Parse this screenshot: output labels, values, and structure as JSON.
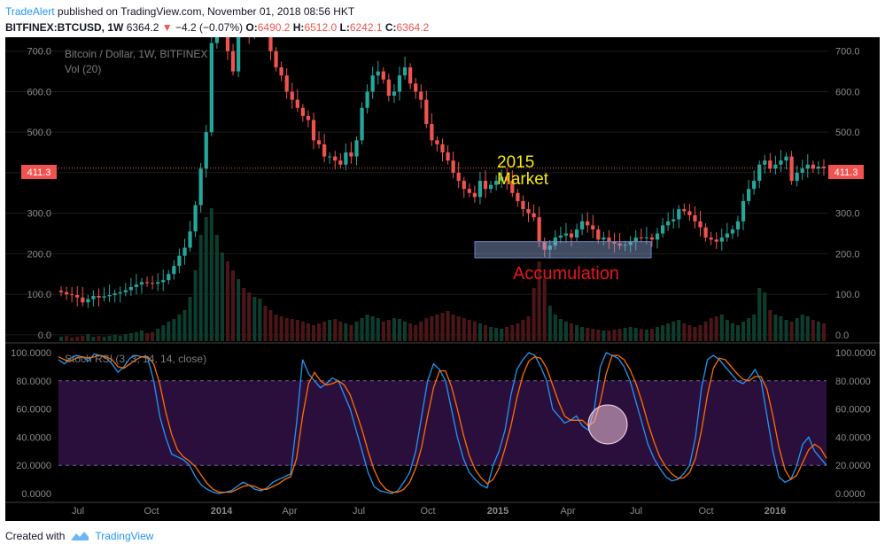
{
  "header": {
    "author": "TradeAlert",
    "published": "published on TradingView.com, November 01, 2018 08:56 HKT",
    "symbol": "BITFINEX:BTCUSD, 1W",
    "last": "6364.2",
    "change": "−4.2 (−0.07%)",
    "o_label": "O:",
    "o": "6490.2",
    "h_label": "H:",
    "h": "6512.0",
    "l_label": "L:",
    "l": "6242.1",
    "c_label": "C:",
    "c": "6364.2"
  },
  "footer": {
    "created_with": "Created with",
    "brand": "TradingView"
  },
  "colors": {
    "up": "#26a69a",
    "down": "#ef5350",
    "background": "#000000",
    "rsi_k": "#2196f3",
    "rsi_d": "#ff6d00",
    "rsi_band": "#2a0f3d"
  },
  "chart_data": [
    {
      "type": "candlestick",
      "title": "Bitcoin / Dollar, 1W, BITFINEX",
      "volume_label": "Vol (20)",
      "last_price_label": "411.3",
      "last_price": 411.3,
      "ylim": [
        -20,
        730
      ],
      "y_ticks": [
        "700.0",
        "600.0",
        "500.0",
        "400.0",
        "300.0",
        "200.0",
        "100.0",
        "0.0"
      ],
      "y_tick_values": [
        700,
        600,
        500,
        400,
        300,
        200,
        100,
        0
      ],
      "annotations": {
        "market_line1": "2015",
        "market_line2": "Market",
        "accumulation": "Accumulation"
      },
      "accumulation_zone": {
        "from": "2015-01",
        "to": "2015-07",
        "low": 190,
        "high": 230
      },
      "closes": [
        105,
        100,
        98,
        92,
        80,
        88,
        96,
        92,
        95,
        98,
        102,
        105,
        110,
        118,
        124,
        130,
        128,
        126,
        130,
        135,
        150,
        170,
        195,
        215,
        255,
        320,
        410,
        500,
        720,
        760,
        800,
        700,
        650,
        820,
        760,
        740,
        820,
        860,
        780,
        700,
        660,
        640,
        600,
        580,
        560,
        540,
        530,
        480,
        470,
        440,
        440,
        430,
        420,
        450,
        440,
        480,
        560,
        600,
        640,
        650,
        630,
        590,
        600,
        640,
        660,
        620,
        600,
        580,
        520,
        480,
        470,
        450,
        430,
        400,
        380,
        360,
        350,
        340,
        380,
        360,
        370,
        380,
        390,
        380,
        350,
        330,
        310,
        300,
        290,
        230,
        210,
        220,
        240,
        245,
        250,
        240,
        260,
        280,
        270,
        260,
        235,
        240,
        230,
        225,
        220,
        222,
        230,
        240,
        238,
        240,
        235,
        250,
        270,
        280,
        285,
        310,
        305,
        295,
        280,
        265,
        240,
        235,
        230,
        240,
        250,
        260,
        280,
        330,
        360,
        380,
        420,
        430,
        410,
        420,
        430,
        440,
        380,
        400,
        410,
        420,
        410,
        415,
        411
      ],
      "volume_heights": [
        5,
        6,
        4,
        5,
        6,
        8,
        5,
        6,
        5,
        6,
        7,
        6,
        8,
        9,
        10,
        12,
        9,
        10,
        14,
        18,
        22,
        25,
        30,
        35,
        50,
        80,
        120,
        140,
        150,
        120,
        100,
        90,
        80,
        70,
        60,
        55,
        50,
        48,
        40,
        35,
        30,
        28,
        26,
        25,
        24,
        22,
        20,
        18,
        20,
        22,
        24,
        25,
        22,
        20,
        18,
        22,
        26,
        30,
        28,
        26,
        22,
        24,
        26,
        25,
        22,
        20,
        18,
        22,
        26,
        28,
        30,
        32,
        34,
        30,
        28,
        26,
        24,
        22,
        20,
        18,
        16,
        15,
        14,
        16,
        18,
        20,
        24,
        28,
        60,
        90,
        70,
        40,
        30,
        25,
        22,
        20,
        18,
        16,
        15,
        14,
        13,
        12,
        12,
        13,
        14,
        15,
        16,
        15,
        14,
        13,
        14,
        16,
        18,
        20,
        22,
        24,
        20,
        18,
        16,
        18,
        22,
        26,
        28,
        30,
        24,
        20,
        18,
        22,
        26,
        30,
        60,
        55,
        35,
        30,
        28,
        24,
        22,
        26,
        30,
        28,
        24,
        22,
        20
      ],
      "x_labels": [
        "Jul",
        "Oct",
        "2014",
        "Apr",
        "Jul",
        "Oct",
        "2015",
        "Apr",
        "Jul",
        "Oct",
        "2016"
      ]
    },
    {
      "type": "line",
      "title": "Stoch RSI (3, 3, 14, 14, close)",
      "ylim": [
        -5,
        105
      ],
      "y_ticks": [
        "100.0000",
        "80.0000",
        "60.0000",
        "40.0000",
        "20.0000",
        "0.0000"
      ],
      "y_tick_values": [
        100,
        80,
        60,
        40,
        20,
        0
      ],
      "band": [
        20,
        80
      ],
      "series": [
        {
          "values": [
            95,
            92,
            96,
            98,
            97,
            94,
            99,
            98,
            96,
            92,
            86,
            90,
            96,
            98,
            97,
            96,
            80,
            55,
            40,
            28,
            26,
            24,
            20,
            12,
            6,
            3,
            1,
            0,
            1,
            2,
            5,
            8,
            6,
            3,
            2,
            4,
            8,
            10,
            12,
            14,
            50,
            95,
            85,
            80,
            75,
            78,
            82,
            80,
            70,
            60,
            45,
            30,
            15,
            5,
            2,
            1,
            0,
            2,
            8,
            15,
            30,
            55,
            80,
            92,
            88,
            80,
            60,
            40,
            25,
            15,
            10,
            6,
            4,
            20,
            30,
            45,
            70,
            88,
            95,
            100,
            98,
            90,
            80,
            60,
            55,
            50,
            52,
            55,
            48,
            45,
            60,
            90,
            100,
            98,
            96,
            90,
            80,
            65,
            50,
            35,
            25,
            18,
            12,
            9,
            10,
            14,
            20,
            40,
            75,
            95,
            98,
            95,
            90,
            85,
            80,
            78,
            82,
            88,
            80,
            55,
            30,
            12,
            8,
            10,
            20,
            35,
            40,
            30,
            25,
            20
          ]
        },
        {
          "values": [
            97,
            95,
            94,
            96,
            97,
            96,
            97,
            98,
            97,
            95,
            90,
            89,
            92,
            95,
            97,
            97,
            92,
            78,
            58,
            42,
            31,
            26,
            23,
            19,
            13,
            7,
            3,
            1,
            1,
            1,
            3,
            5,
            6,
            5,
            3,
            3,
            5,
            7,
            10,
            12,
            25,
            55,
            78,
            86,
            80,
            77,
            78,
            80,
            77,
            70,
            58,
            45,
            30,
            17,
            8,
            3,
            1,
            1,
            3,
            8,
            18,
            33,
            55,
            75,
            87,
            87,
            76,
            60,
            42,
            27,
            17,
            11,
            7,
            10,
            18,
            32,
            48,
            68,
            84,
            94,
            97,
            96,
            89,
            77,
            65,
            55,
            52,
            52,
            52,
            48,
            51,
            65,
            85,
            98,
            98,
            95,
            88,
            78,
            65,
            50,
            37,
            26,
            19,
            14,
            11,
            11,
            15,
            25,
            45,
            70,
            89,
            96,
            95,
            90,
            85,
            81,
            80,
            83,
            83,
            74,
            55,
            33,
            17,
            10,
            13,
            22,
            31,
            35,
            32,
            25
          ]
        }
      ],
      "x_labels": [
        "Jul",
        "Oct",
        "2014",
        "Apr",
        "Jul",
        "Oct",
        "2015",
        "Apr",
        "Jul",
        "Oct",
        "2016"
      ]
    }
  ]
}
